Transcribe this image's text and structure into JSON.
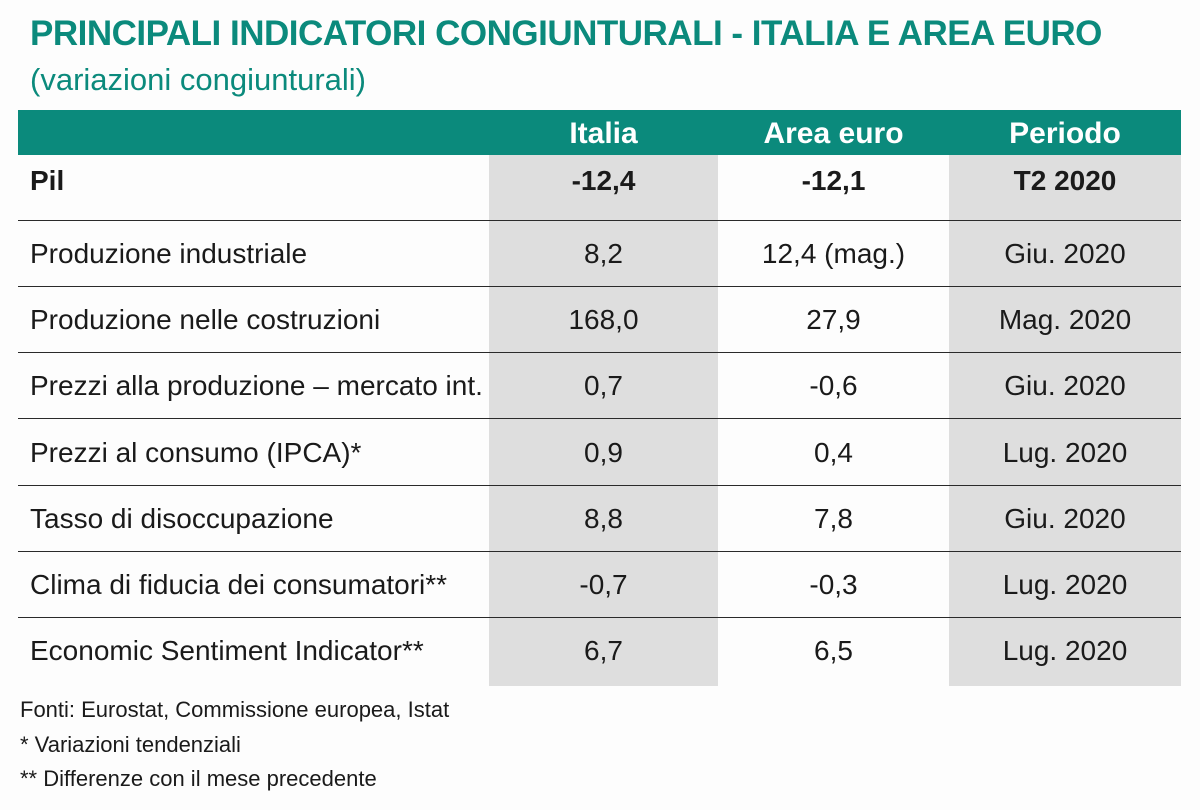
{
  "title": "PRINCIPALI INDICATORI CONGIUNTURALI - ITALIA E AREA EURO",
  "subtitle": "(variazioni congiunturali)",
  "columns": [
    "Italia",
    "Area euro",
    "Periodo"
  ],
  "rows": [
    {
      "label": "Pil",
      "italia": "-12,4",
      "area_euro": "-12,1",
      "periodo": "T2 2020"
    },
    {
      "label": "Produzione industriale",
      "italia": "8,2",
      "area_euro": "12,4 (mag.)",
      "periodo": "Giu. 2020"
    },
    {
      "label": "Produzione nelle costruzioni",
      "italia": "168,0",
      "area_euro": "27,9",
      "periodo": "Mag. 2020"
    },
    {
      "label": "Prezzi alla produzione – mercato int.",
      "italia": "0,7",
      "area_euro": "-0,6",
      "periodo": "Giu. 2020"
    },
    {
      "label": "Prezzi al consumo (IPCA)*",
      "italia": "0,9",
      "area_euro": "0,4",
      "periodo": "Lug. 2020"
    },
    {
      "label": "Tasso di disoccupazione",
      "italia": "8,8",
      "area_euro": "7,8",
      "periodo": "Giu. 2020"
    },
    {
      "label": "Clima di fiducia dei consumatori**",
      "italia": "-0,7",
      "area_euro": "-0,3",
      "periodo": "Lug. 2020"
    },
    {
      "label": "Economic Sentiment Indicator**",
      "italia": "6,7",
      "area_euro": "6,5",
      "periodo": "Lug. 2020"
    }
  ],
  "footnotes": [
    "Fonti: Eurostat, Commissione europea, Istat",
    "* Variazioni tendenziali",
    "** Differenze con il mese precedente"
  ],
  "colors": {
    "accent": "#0b8a7c",
    "shade": "#dedede"
  }
}
